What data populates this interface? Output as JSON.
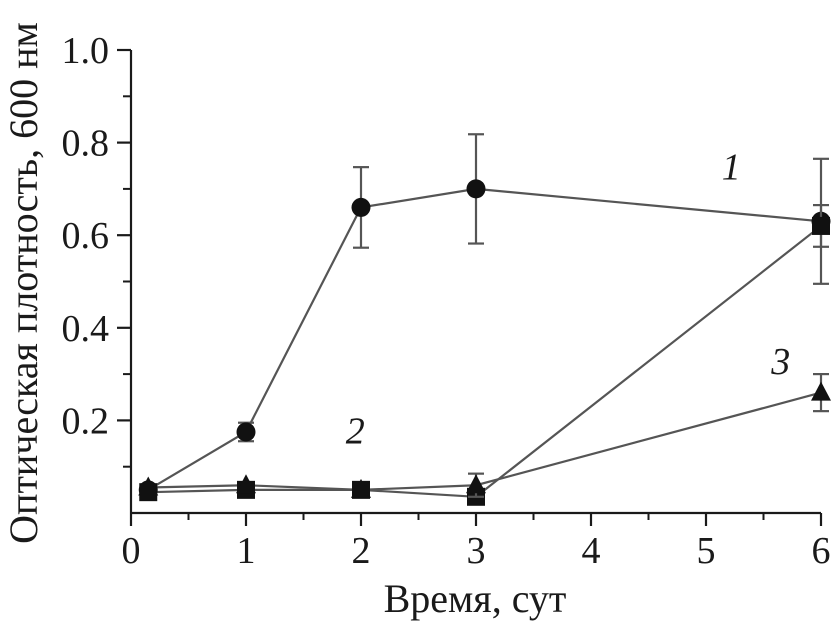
{
  "chart_data": {
    "type": "line",
    "xlabel": "Время, сут",
    "ylabel": "Оптическая плотность, 600 нм",
    "xlim": [
      0,
      6
    ],
    "ylim": [
      0,
      1.0
    ],
    "x_ticks": [
      0,
      1,
      2,
      3,
      4,
      5,
      6
    ],
    "x_tick_labels": [
      "0",
      "1",
      "2",
      "3",
      "4",
      "5",
      "6"
    ],
    "y_ticks": [
      0.2,
      0.4,
      0.6,
      0.8,
      1.0
    ],
    "y_tick_labels": [
      "0.2",
      "0.4",
      "0.6",
      "0.8",
      "1.0"
    ],
    "grid": false,
    "series": [
      {
        "name": "1",
        "marker": "circle",
        "x": [
          0.15,
          1,
          2,
          3,
          6
        ],
        "y": [
          0.05,
          0.175,
          0.66,
          0.7,
          0.63
        ],
        "err": [
          0,
          0.02,
          0.087,
          0.118,
          0.135
        ]
      },
      {
        "name": "2",
        "marker": "square",
        "x": [
          0.15,
          1,
          2,
          3,
          6
        ],
        "y": [
          0.045,
          0.05,
          0.05,
          0.035,
          0.62
        ],
        "err": [
          0,
          0,
          0,
          0,
          0.045
        ]
      },
      {
        "name": "3",
        "marker": "triangle",
        "x": [
          0.15,
          1,
          2,
          3,
          6
        ],
        "y": [
          0.055,
          0.06,
          0.05,
          0.06,
          0.26
        ],
        "err": [
          0,
          0,
          0,
          0.025,
          0.04
        ]
      }
    ]
  }
}
